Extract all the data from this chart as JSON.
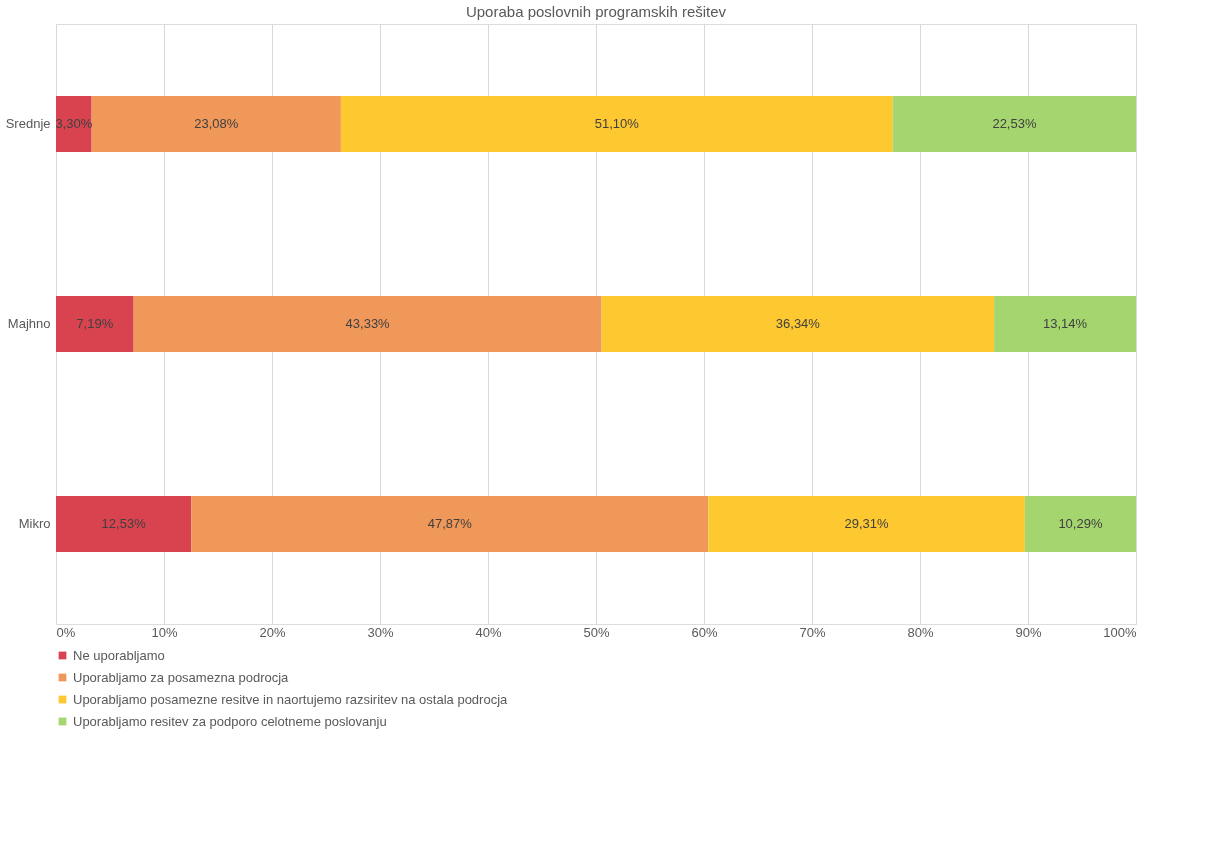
{
  "chart_data": {
    "type": "bar",
    "orientation": "horizontal",
    "stacked": true,
    "title": "Uporaba poslovnih programskih rešitev",
    "categories": [
      "Srednje",
      "Majhno",
      "Mikro"
    ],
    "series": [
      {
        "name": "Ne uporabljamo",
        "color": "#d9434f",
        "values": [
          3.3,
          7.19,
          12.53
        ],
        "value_labels": [
          "3,30%",
          "7,19%",
          "12,53%"
        ]
      },
      {
        "name": "Uporabljamo za posamezna podrocja",
        "color": "#f0975a",
        "values": [
          23.08,
          43.33,
          47.87
        ],
        "value_labels": [
          "23,08%",
          "43,33%",
          "47,87%"
        ]
      },
      {
        "name": "Uporabljamo posamezne resitve in naortujemo razsiritev na ostala podrocja",
        "color": "#fdc830",
        "values": [
          51.1,
          36.34,
          29.31
        ],
        "value_labels": [
          "51,10%",
          "36,34%",
          "29,31%"
        ]
      },
      {
        "name": "Uporabljamo resitev za podporo celotneme poslovanju",
        "color": "#a5d56e",
        "values": [
          22.53,
          13.14,
          10.29
        ],
        "value_labels": [
          "22,53%",
          "13,14%",
          "10,29%"
        ]
      }
    ],
    "xlim": [
      0,
      100
    ],
    "xticks": [
      {
        "value": 0,
        "label": "0%"
      },
      {
        "value": 10,
        "label": "10%"
      },
      {
        "value": 20,
        "label": "20%"
      },
      {
        "value": 30,
        "label": "30%"
      },
      {
        "value": 40,
        "label": "40%"
      },
      {
        "value": 50,
        "label": "50%"
      },
      {
        "value": 60,
        "label": "60%"
      },
      {
        "value": 70,
        "label": "70%"
      },
      {
        "value": 80,
        "label": "80%"
      },
      {
        "value": 90,
        "label": "90%"
      },
      {
        "value": 100,
        "label": "100%"
      }
    ],
    "grid": "x",
    "legend": "bottom"
  }
}
